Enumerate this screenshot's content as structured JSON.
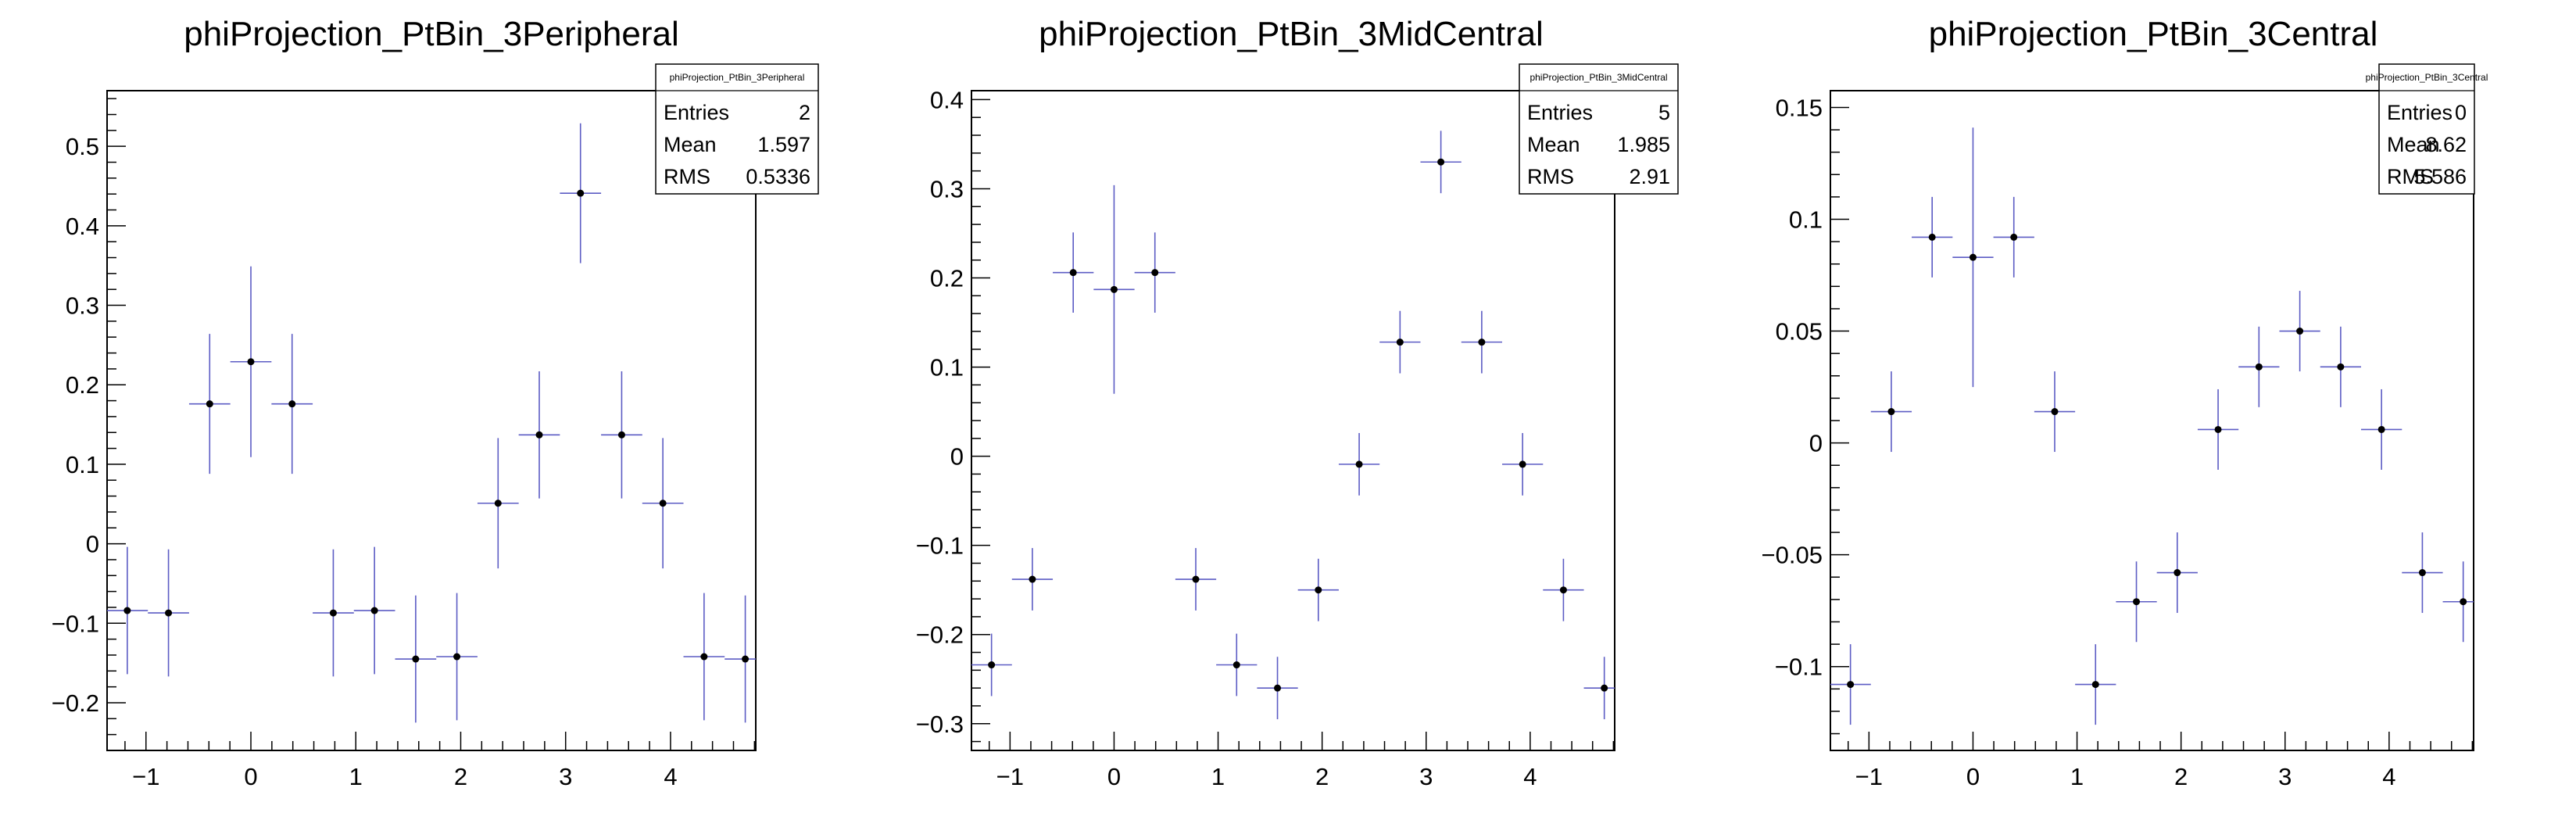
{
  "chart_data": [
    {
      "type": "scatter",
      "title": "phiProjection_PtBin_3Peripheral",
      "xlabel": "",
      "ylabel": "",
      "xlim": [
        -1.3708,
        4.8124
      ],
      "ylim": [
        -0.26,
        0.57
      ],
      "xticks": [
        -1,
        0,
        1,
        2,
        3,
        4
      ],
      "yticks": [
        -0.2,
        -0.1,
        0,
        0.1,
        0.2,
        0.3,
        0.4,
        0.5
      ],
      "ytick_labels": [
        "−0.2",
        "−0.1",
        "0",
        "0.1",
        "0.2",
        "0.3",
        "0.4",
        "0.5"
      ],
      "xtick_labels": [
        "−1",
        "0",
        "1",
        "2",
        "3",
        "4"
      ],
      "bin_width": 0.3927,
      "stats": {
        "title": "phiProjection_PtBin_3Peripheral",
        "rows": [
          [
            "Entries",
            "2"
          ],
          [
            "Mean",
            "1.597"
          ],
          [
            "RMS",
            "0.5336"
          ]
        ]
      },
      "points": [
        {
          "x": -1.1781,
          "y": -0.084,
          "err": 0.08
        },
        {
          "x": -0.7854,
          "y": -0.087,
          "err": 0.08
        },
        {
          "x": -0.3927,
          "y": 0.176,
          "err": 0.088
        },
        {
          "x": 0.0,
          "y": 0.229,
          "err": 0.12
        },
        {
          "x": 0.3927,
          "y": 0.176,
          "err": 0.088
        },
        {
          "x": 0.7854,
          "y": -0.087,
          "err": 0.08
        },
        {
          "x": 1.1781,
          "y": -0.084,
          "err": 0.08
        },
        {
          "x": 1.5708,
          "y": -0.145,
          "err": 0.08
        },
        {
          "x": 1.9635,
          "y": -0.142,
          "err": 0.08
        },
        {
          "x": 2.3562,
          "y": 0.051,
          "err": 0.082
        },
        {
          "x": 2.7489,
          "y": 0.137,
          "err": 0.08
        },
        {
          "x": 3.1416,
          "y": 0.441,
          "err": 0.088
        },
        {
          "x": 3.5343,
          "y": 0.137,
          "err": 0.08
        },
        {
          "x": 3.927,
          "y": 0.051,
          "err": 0.082
        },
        {
          "x": 4.3197,
          "y": -0.142,
          "err": 0.08
        },
        {
          "x": 4.7124,
          "y": -0.145,
          "err": 0.08
        }
      ]
    },
    {
      "type": "scatter",
      "title": "phiProjection_PtBin_3MidCentral",
      "xlabel": "",
      "ylabel": "",
      "xlim": [
        -1.3708,
        4.8124
      ],
      "ylim": [
        -0.33,
        0.41
      ],
      "xticks": [
        -1,
        0,
        1,
        2,
        3,
        4
      ],
      "yticks": [
        -0.3,
        -0.2,
        -0.1,
        0,
        0.1,
        0.2,
        0.3,
        0.4
      ],
      "ytick_labels": [
        "−0.3",
        "−0.2",
        "−0.1",
        "0",
        "0.1",
        "0.2",
        "0.3",
        "0.4"
      ],
      "xtick_labels": [
        "−1",
        "0",
        "1",
        "2",
        "3",
        "4"
      ],
      "bin_width": 0.3927,
      "stats": {
        "title": "phiProjection_PtBin_3MidCentral",
        "rows": [
          [
            "Entries",
            "5"
          ],
          [
            "Mean",
            "1.985"
          ],
          [
            "RMS",
            "2.91"
          ]
        ]
      },
      "points": [
        {
          "x": -1.1781,
          "y": -0.234,
          "err": 0.035
        },
        {
          "x": -0.7854,
          "y": -0.138,
          "err": 0.035
        },
        {
          "x": -0.3927,
          "y": 0.206,
          "err": 0.045
        },
        {
          "x": 0.0,
          "y": 0.187,
          "err": 0.117
        },
        {
          "x": 0.3927,
          "y": 0.206,
          "err": 0.045
        },
        {
          "x": 0.7854,
          "y": -0.138,
          "err": 0.035
        },
        {
          "x": 1.1781,
          "y": -0.234,
          "err": 0.035
        },
        {
          "x": 1.5708,
          "y": -0.26,
          "err": 0.035
        },
        {
          "x": 1.9635,
          "y": -0.15,
          "err": 0.035
        },
        {
          "x": 2.3562,
          "y": -0.009,
          "err": 0.035
        },
        {
          "x": 2.7489,
          "y": 0.128,
          "err": 0.035
        },
        {
          "x": 3.1416,
          "y": 0.33,
          "err": 0.035
        },
        {
          "x": 3.5343,
          "y": 0.128,
          "err": 0.035
        },
        {
          "x": 3.927,
          "y": -0.009,
          "err": 0.035
        },
        {
          "x": 4.3197,
          "y": -0.15,
          "err": 0.035
        },
        {
          "x": 4.7124,
          "y": -0.26,
          "err": 0.035
        }
      ]
    },
    {
      "type": "scatter",
      "title": "phiProjection_PtBin_3Central",
      "xlabel": "",
      "ylabel": "",
      "xlim": [
        -1.3708,
        4.8124
      ],
      "ylim": [
        -0.1375,
        0.1575
      ],
      "xticks": [
        -1,
        0,
        1,
        2,
        3,
        4
      ],
      "yticks": [
        -0.1,
        -0.05,
        0,
        0.05,
        0.1,
        0.15
      ],
      "ytick_labels": [
        "−0.1",
        "−0.05",
        "0",
        "0.05",
        "0.1",
        "0.15"
      ],
      "xtick_labels": [
        "−1",
        "0",
        "1",
        "2",
        "3",
        "4"
      ],
      "bin_width": 0.3927,
      "stats": {
        "title": "phiProjection_PtBin_3Central",
        "rows": [
          [
            "Entries",
            "0"
          ],
          [
            "Mean",
            "8.62"
          ],
          [
            "RMS",
            "5.586"
          ]
        ]
      },
      "points": [
        {
          "x": -1.1781,
          "y": -0.108,
          "err": 0.018
        },
        {
          "x": -0.7854,
          "y": 0.014,
          "err": 0.018
        },
        {
          "x": -0.3927,
          "y": 0.092,
          "err": 0.018
        },
        {
          "x": 0.0,
          "y": 0.083,
          "err": 0.058
        },
        {
          "x": 0.3927,
          "y": 0.092,
          "err": 0.018
        },
        {
          "x": 0.7854,
          "y": 0.014,
          "err": 0.018
        },
        {
          "x": 1.1781,
          "y": -0.108,
          "err": 0.018
        },
        {
          "x": 1.5708,
          "y": -0.071,
          "err": 0.018
        },
        {
          "x": 1.9635,
          "y": -0.058,
          "err": 0.018
        },
        {
          "x": 2.3562,
          "y": 0.006,
          "err": 0.018
        },
        {
          "x": 2.7489,
          "y": 0.034,
          "err": 0.018
        },
        {
          "x": 3.1416,
          "y": 0.05,
          "err": 0.018
        },
        {
          "x": 3.5343,
          "y": 0.034,
          "err": 0.018
        },
        {
          "x": 3.927,
          "y": 0.006,
          "err": 0.018
        },
        {
          "x": 4.3197,
          "y": -0.058,
          "err": 0.018
        },
        {
          "x": 4.7124,
          "y": -0.071,
          "err": 0.018
        }
      ]
    }
  ],
  "colors": {
    "error_bar": "#5c5cc4",
    "marker": "#000000",
    "frame": "#000000",
    "background": "#ffffff"
  }
}
